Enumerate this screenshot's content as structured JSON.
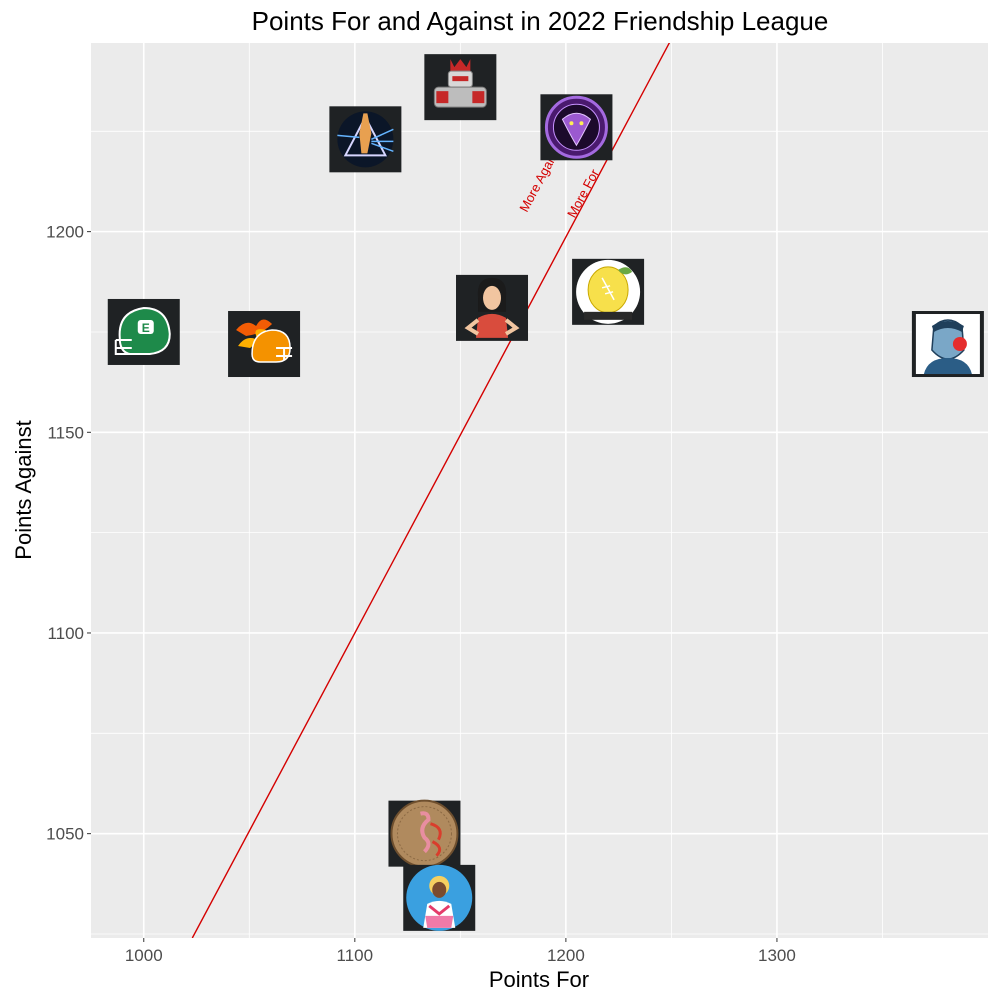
{
  "chart_data": {
    "type": "scatter",
    "title": "Points For and Against in 2022 Friendship League",
    "xlabel": "Points For",
    "ylabel": "Points Against",
    "xlim": [
      975,
      1400
    ],
    "ylim": [
      1024,
      1247
    ],
    "x_ticks": [
      1000,
      1100,
      1200,
      1300
    ],
    "y_ticks": [
      1050,
      1100,
      1150,
      1200
    ],
    "grid": true,
    "legend": "none",
    "reference_line": {
      "points": [
        [
          1023,
          1024
        ],
        [
          1250,
          1248
        ]
      ],
      "color": "#d40000",
      "label_above": "More Against",
      "label_below": "More For"
    },
    "points": [
      {
        "x": 1000,
        "y": 1175,
        "icon": "green-football-helmet-icon"
      },
      {
        "x": 1057,
        "y": 1172,
        "icon": "flaming-football-helmet-icon"
      },
      {
        "x": 1105,
        "y": 1223,
        "icon": "prism-warrior-icon"
      },
      {
        "x": 1150,
        "y": 1236,
        "icon": "robot-king-icon"
      },
      {
        "x": 1205,
        "y": 1226,
        "icon": "purple-snake-gym-icon"
      },
      {
        "x": 1165,
        "y": 1181,
        "icon": "cartoon-woman-icon"
      },
      {
        "x": 1220,
        "y": 1185,
        "icon": "lemon-football-icon"
      },
      {
        "x": 1381,
        "y": 1172,
        "icon": "clown-nose-man-icon"
      },
      {
        "x": 1133,
        "y": 1050,
        "icon": "flamingo-patch-icon"
      },
      {
        "x": 1140,
        "y": 1034,
        "icon": "sailor-moon-icon"
      }
    ]
  }
}
